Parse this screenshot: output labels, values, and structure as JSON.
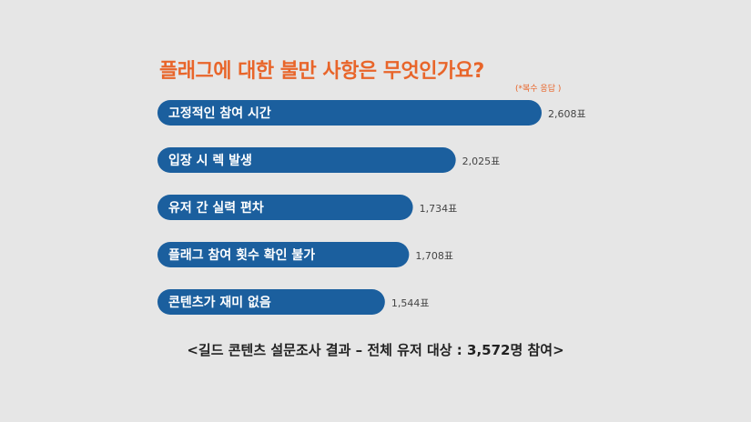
{
  "chart_data": {
    "type": "bar",
    "orientation": "horizontal",
    "title": "플래그에 대한 불만 사항은 무엇인가요?",
    "note": "(*복수 응답 )",
    "footer": "<길드 콘텐츠 설문조사 결과 – 전체 유저 대상 : 3,572명 참여>",
    "categories": [
      "고정적인 참여 시간",
      "입장 시 렉 발생",
      "유저 간 실력 편차",
      "플래그 참여 횟수 확인 불가",
      "콘텐츠가 재미 없음"
    ],
    "values": [
      2608,
      2025,
      1734,
      1708,
      1544
    ],
    "value_labels": [
      "2,608표",
      "2,025표",
      "1,734표",
      "1,708표",
      "1,544표"
    ],
    "colors": {
      "bar": "#1b5f9e",
      "title": "#e8652a",
      "value_text": "#444444"
    }
  }
}
